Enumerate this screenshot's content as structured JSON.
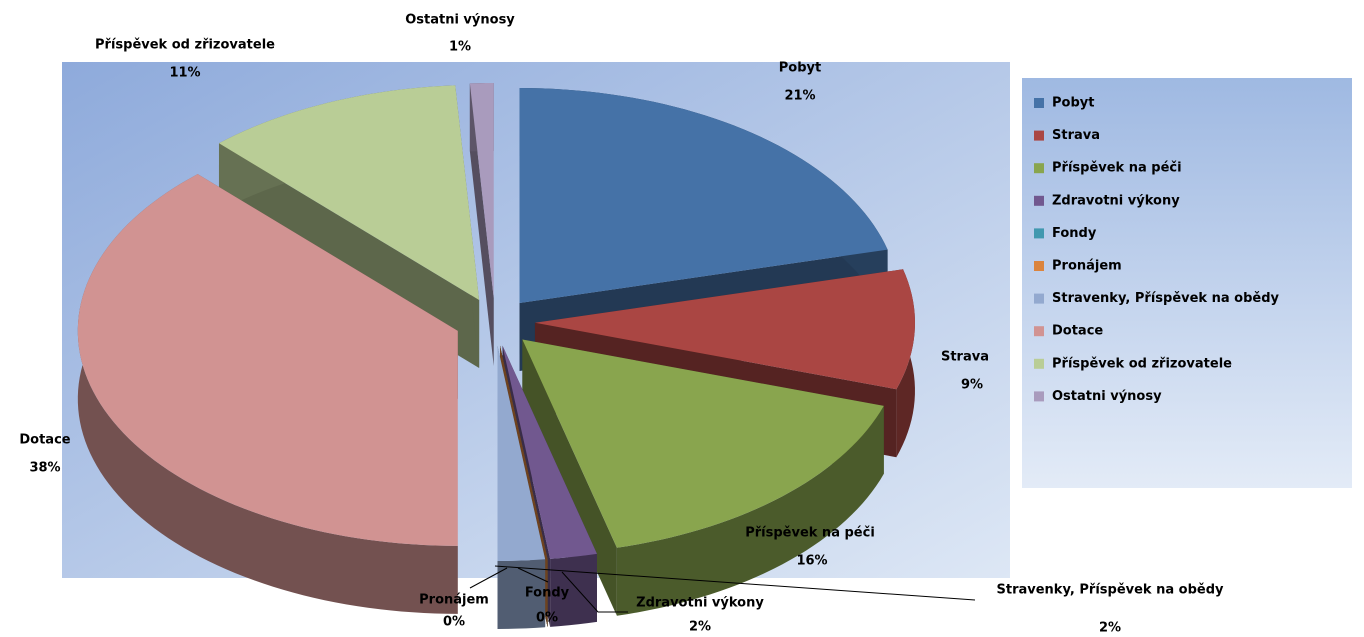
{
  "chart_data": {
    "type": "pie3d",
    "categories": [
      "Pobyt",
      "Strava",
      "Příspěvek na péči",
      "Zdravotni výkony",
      "Fondy",
      "Pronájem",
      "Stravenky, Příspěvek na obědy",
      "Dotace",
      "Příspěvek od zřizovatele",
      "Ostatni výnosy"
    ],
    "values": [
      21,
      9,
      16,
      2,
      0,
      0,
      2,
      38,
      11,
      1
    ],
    "value_labels": [
      "21%",
      "9%",
      "16%",
      "2%",
      "0%",
      "0%",
      "2%",
      "38%",
      "11%",
      "1%"
    ],
    "colors": [
      "#4572a7",
      "#aa4643",
      "#89a54e",
      "#71588f",
      "#4198af",
      "#db843d",
      "#93a9cf",
      "#d19392",
      "#b9cd96",
      "#a99bbd"
    ],
    "legend": "right"
  }
}
